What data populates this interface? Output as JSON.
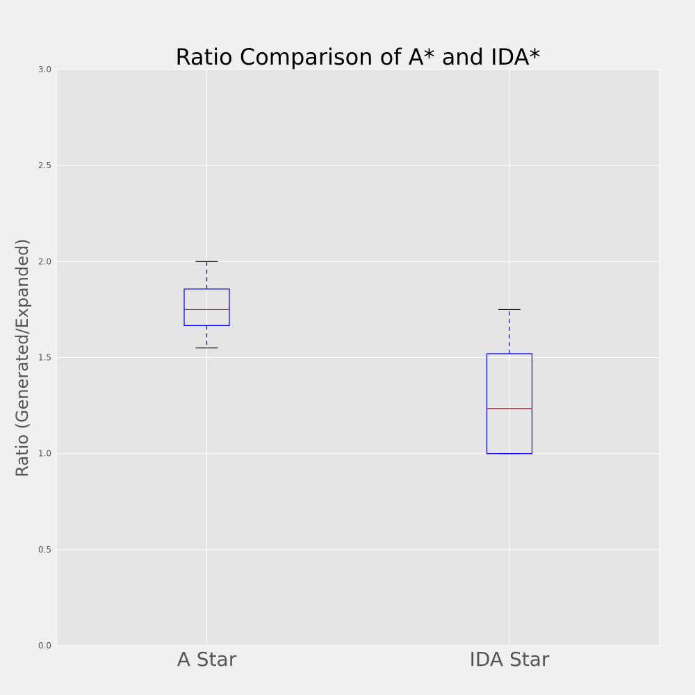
{
  "chart_data": {
    "type": "box",
    "title": "Ratio Comparison of A* and IDA*",
    "xlabel": "",
    "ylabel": "Ratio (Generated/Expanded)",
    "ylim": [
      0.0,
      3.0
    ],
    "yticks": [
      "0.0",
      "0.5",
      "1.0",
      "1.5",
      "2.0",
      "2.5",
      "3.0"
    ],
    "categories": [
      "A Star",
      "IDA Star"
    ],
    "boxes": [
      {
        "category": "A Star",
        "whisker_low": 1.55,
        "q1": 1.667,
        "median": 1.75,
        "q3": 1.857,
        "whisker_high": 2.0
      },
      {
        "category": "IDA Star",
        "whisker_low": 1.0,
        "q1": 1.0,
        "median": 1.235,
        "q3": 1.52,
        "whisker_high": 1.75
      }
    ],
    "grid": true,
    "colors": {
      "figure_bg": "#f0f0f0",
      "axes_bg": "#e5e5e5",
      "grid": "#ffffff",
      "box": "#0000ff",
      "median": "#ff0000",
      "whisker": "#0000ff",
      "cap": "#000000"
    }
  }
}
